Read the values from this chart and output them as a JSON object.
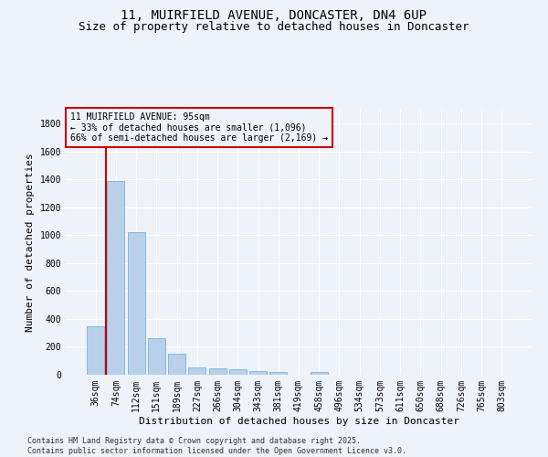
{
  "title": "11, MUIRFIELD AVENUE, DONCASTER, DN4 6UP",
  "subtitle": "Size of property relative to detached houses in Doncaster",
  "xlabel": "Distribution of detached houses by size in Doncaster",
  "ylabel": "Number of detached properties",
  "categories": [
    "36sqm",
    "74sqm",
    "112sqm",
    "151sqm",
    "189sqm",
    "227sqm",
    "266sqm",
    "304sqm",
    "343sqm",
    "381sqm",
    "419sqm",
    "458sqm",
    "496sqm",
    "534sqm",
    "573sqm",
    "611sqm",
    "650sqm",
    "688sqm",
    "726sqm",
    "765sqm",
    "803sqm"
  ],
  "values": [
    350,
    1390,
    1020,
    265,
    150,
    55,
    48,
    38,
    28,
    18,
    0,
    20,
    0,
    0,
    0,
    0,
    0,
    0,
    0,
    0,
    0
  ],
  "bar_color": "#b8d0ea",
  "bar_edge_color": "#6aaad4",
  "annotation_box_color": "#cc0000",
  "vline_color": "#cc0000",
  "vline_x": 0.5,
  "annotation_text": "11 MUIRFIELD AVENUE: 95sqm\n← 33% of detached houses are smaller (1,096)\n66% of semi-detached houses are larger (2,169) →",
  "ylim": [
    0,
    1900
  ],
  "yticks": [
    0,
    200,
    400,
    600,
    800,
    1000,
    1200,
    1400,
    1600,
    1800
  ],
  "background_color": "#eef2f9",
  "footnote": "Contains HM Land Registry data © Crown copyright and database right 2025.\nContains public sector information licensed under the Open Government Licence v3.0.",
  "title_fontsize": 10,
  "subtitle_fontsize": 9,
  "tick_fontsize": 7,
  "ylabel_fontsize": 8,
  "xlabel_fontsize": 8,
  "annotation_fontsize": 7,
  "footnote_fontsize": 6
}
